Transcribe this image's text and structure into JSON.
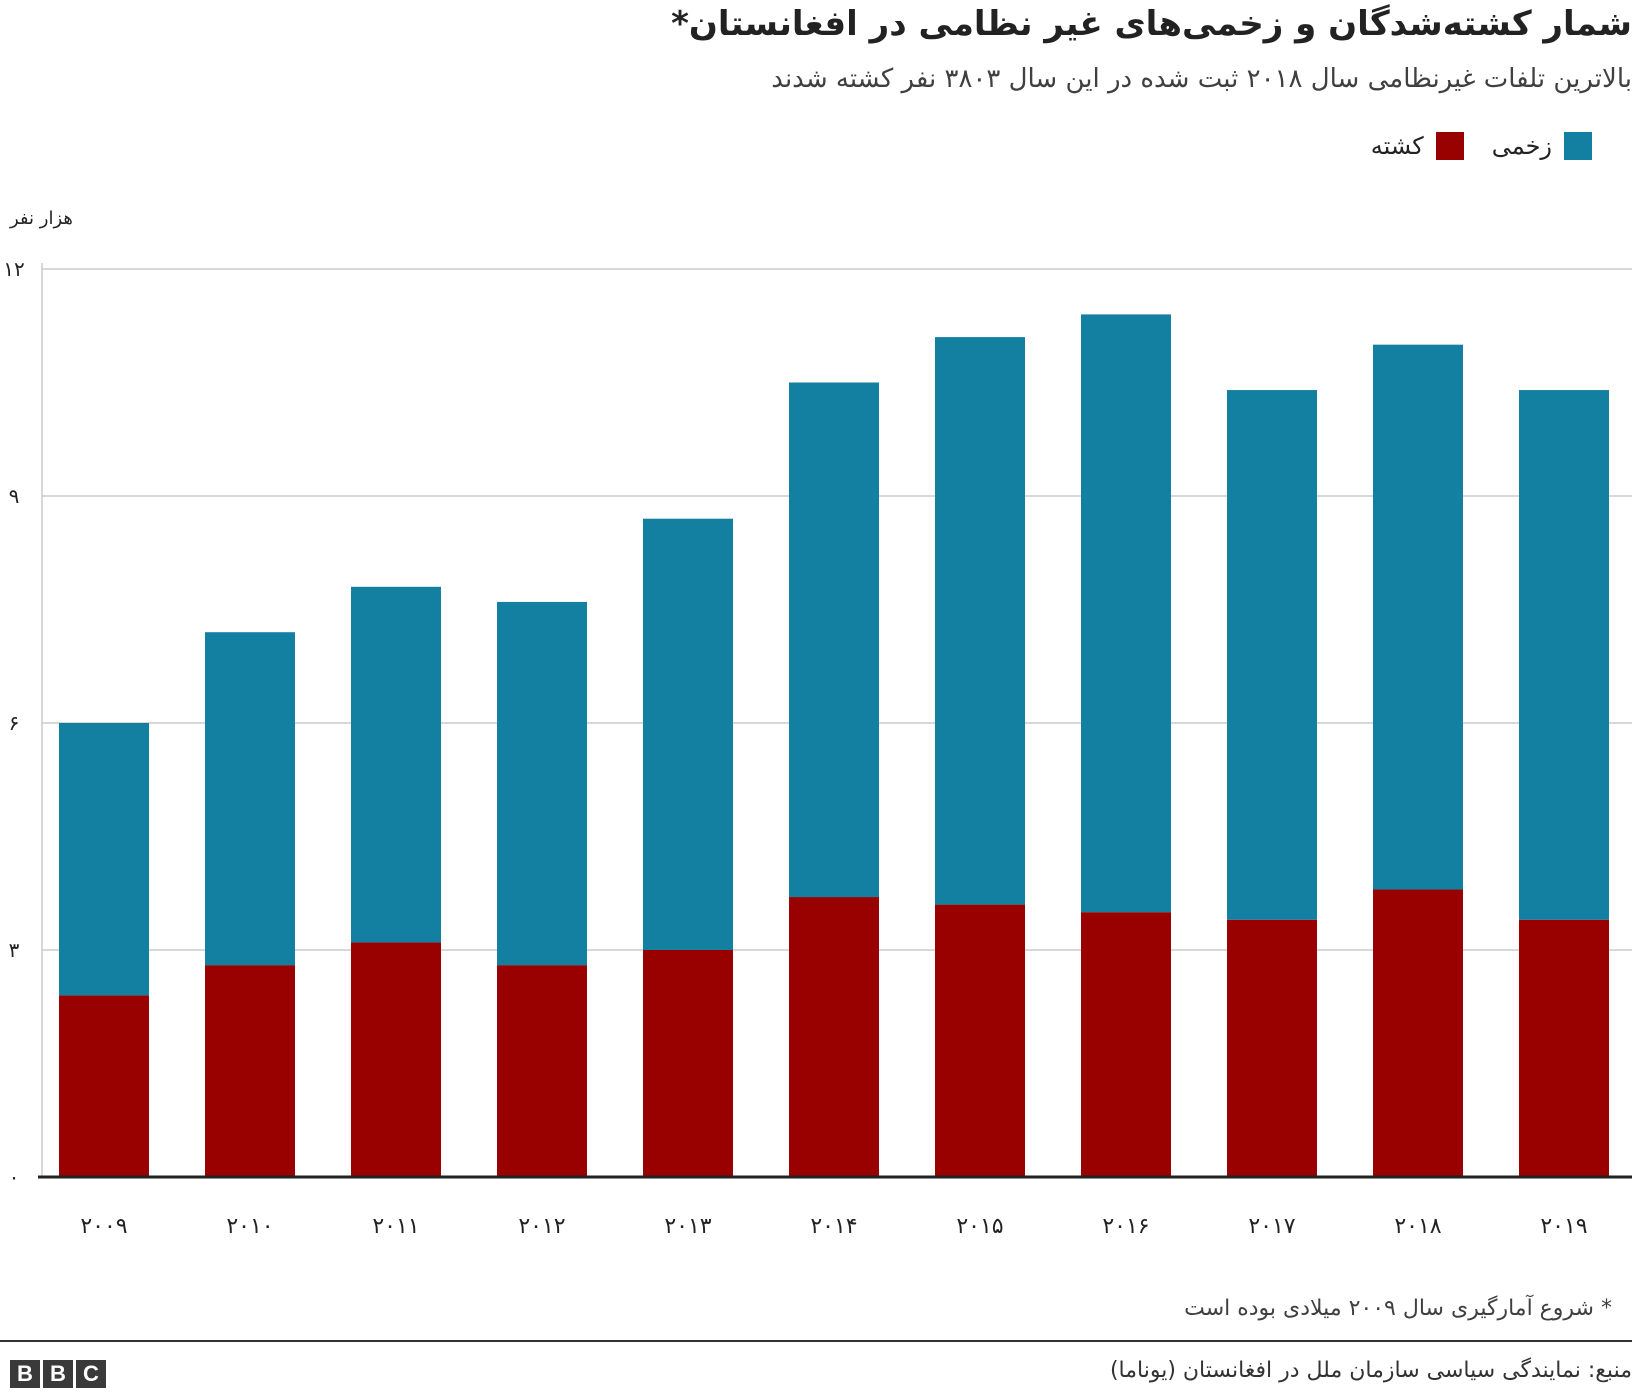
{
  "header": {
    "title": "شمار کشته‌شدگان و زخمی‌های غیر نظامی در افغانستان*",
    "subtitle": "بالاترین تلفات غیرنظامی سال ۲۰۱۸ ثبت شده در این سال ۳۸۰۳ نفر کشته شدند"
  },
  "legend": {
    "injured_label": "زخمی",
    "killed_label": "کشته",
    "injured_color": "#1380a1",
    "killed_color": "#990000"
  },
  "footer": {
    "footnote": "* شروع آمارگیری سال ۲۰۰۹ میلادی بوده است",
    "source": "منبع: نمایندگی سیاسی سازمان ملل در افغانستان (یوناما)",
    "logo_letters": [
      "B",
      "B",
      "C"
    ]
  },
  "chart_data": {
    "type": "bar",
    "stacked": true,
    "title": "شمار کشته‌شدگان و زخمی‌های غیر نظامی در افغانستان*",
    "subtitle": "بالاترین تلفات غیرنظامی سال ۲۰۱۸ ثبت شده در این سال ۳۸۰۳ نفر کشته شدند",
    "xlabel": "",
    "ylabel": "هزار نفر",
    "categories": [
      "۲۰۰۹",
      "۲۰۱۰",
      "۲۰۱۱",
      "۲۰۱۲",
      "۲۰۱۳",
      "۲۰۱۴",
      "۲۰۱۵",
      "۲۰۱۶",
      "۲۰۱۷",
      "۲۰۱۸",
      "۲۰۱۹"
    ],
    "series": [
      {
        "name": "کشته",
        "color": "#990000",
        "values": [
          2.4,
          2.8,
          3.1,
          2.8,
          3.0,
          3.7,
          3.6,
          3.5,
          3.4,
          3.8,
          3.4
        ]
      },
      {
        "name": "زخمی",
        "color": "#1380a1",
        "values": [
          3.6,
          4.4,
          4.7,
          4.8,
          5.7,
          6.8,
          7.5,
          7.9,
          7.0,
          7.2,
          7.0
        ]
      }
    ],
    "ylim": [
      0,
      12
    ],
    "yticks": [
      0,
      3,
      6,
      9,
      12
    ],
    "ytick_labels": [
      "۰",
      "۳",
      "۶",
      "۹",
      "۱۲"
    ],
    "grid": true,
    "legend_position": "top-right"
  }
}
